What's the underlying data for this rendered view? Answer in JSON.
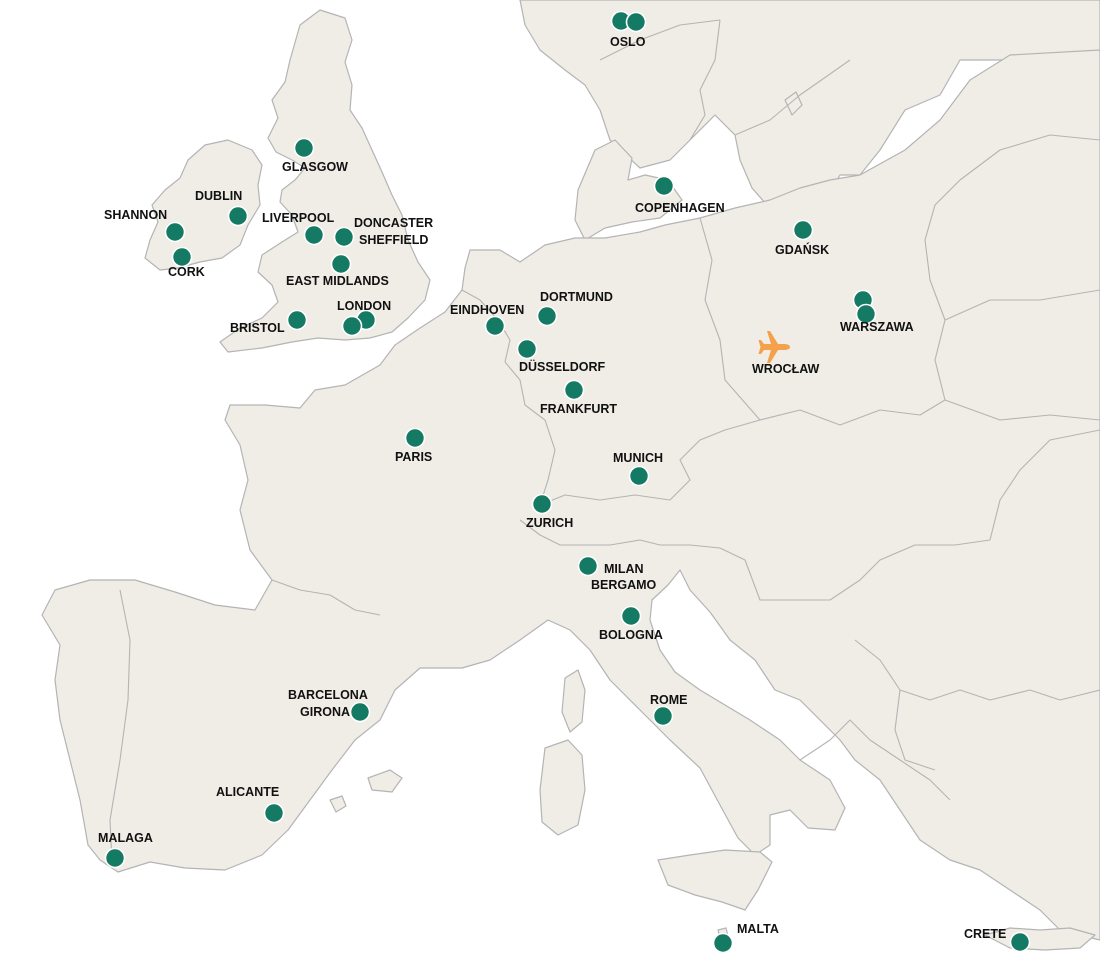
{
  "map": {
    "colors": {
      "land": "#efede6",
      "border": "#b4b4b4",
      "dot": "#157a63",
      "plane": "#f5a04a"
    },
    "home_airport": {
      "label": "WROCŁAW",
      "icon": "airplane-icon"
    },
    "destinations": [
      {
        "id": "oslo",
        "label": "OSLO"
      },
      {
        "id": "glasgow",
        "label": "GLASGOW"
      },
      {
        "id": "dublin",
        "label": "DUBLIN"
      },
      {
        "id": "shannon",
        "label": "SHANNON"
      },
      {
        "id": "cork",
        "label": "CORK"
      },
      {
        "id": "liverpool",
        "label": "LIVERPOOL"
      },
      {
        "id": "doncaster",
        "label": "DONCASTER"
      },
      {
        "id": "sheffield",
        "label": "SHEFFIELD"
      },
      {
        "id": "east-midlands",
        "label": "EAST MIDLANDS"
      },
      {
        "id": "london",
        "label": "LONDON"
      },
      {
        "id": "bristol",
        "label": "BRISTOL"
      },
      {
        "id": "copenhagen",
        "label": "COPENHAGEN"
      },
      {
        "id": "gdansk",
        "label": "GDAŃSK"
      },
      {
        "id": "warszawa",
        "label": "WARSZAWA"
      },
      {
        "id": "eindhoven",
        "label": "EINDHOVEN"
      },
      {
        "id": "dortmund",
        "label": "DORTMUND"
      },
      {
        "id": "dusseldorf",
        "label": "DÜSSELDORF"
      },
      {
        "id": "frankfurt",
        "label": "FRANKFURT"
      },
      {
        "id": "paris",
        "label": "PARIS"
      },
      {
        "id": "munich",
        "label": "MUNICH"
      },
      {
        "id": "zurich",
        "label": "ZURICH"
      },
      {
        "id": "milan",
        "label": "MILAN"
      },
      {
        "id": "bergamo",
        "label": "BERGAMO"
      },
      {
        "id": "bologna",
        "label": "BOLOGNA"
      },
      {
        "id": "barcelona",
        "label": "BARCELONA"
      },
      {
        "id": "girona",
        "label": "GIRONA"
      },
      {
        "id": "rome",
        "label": "ROME"
      },
      {
        "id": "alicante",
        "label": "ALICANTE"
      },
      {
        "id": "malaga",
        "label": "MALAGA"
      },
      {
        "id": "malta",
        "label": "MALTA"
      },
      {
        "id": "crete",
        "label": "CRETE"
      }
    ]
  }
}
